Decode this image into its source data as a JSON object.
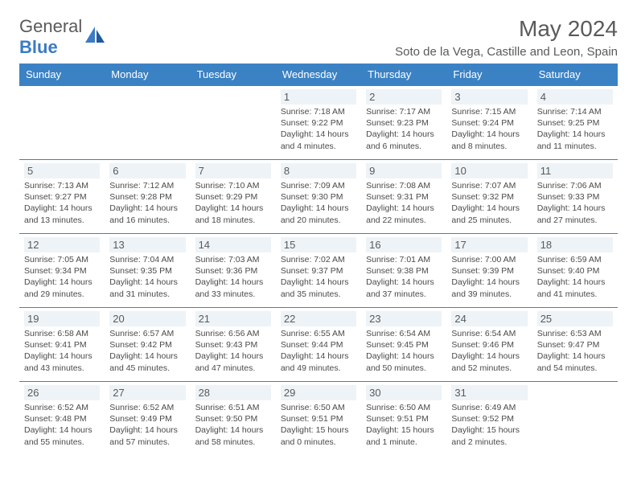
{
  "logo": {
    "text_gray": "General",
    "text_blue": "Blue"
  },
  "title": "May 2024",
  "location": "Soto de la Vega, Castille and Leon, Spain",
  "colors": {
    "header_bg": "#3b82c4",
    "daynum_bg": "#eef3f7",
    "text_gray": "#5a5a5a",
    "detail_text": "#4a4a4a",
    "logo_blue": "#3b7bc4"
  },
  "dayNames": [
    "Sunday",
    "Monday",
    "Tuesday",
    "Wednesday",
    "Thursday",
    "Friday",
    "Saturday"
  ],
  "weeks": [
    [
      null,
      null,
      null,
      {
        "n": "1",
        "sr": "7:18 AM",
        "ss": "9:22 PM",
        "dl": "14 hours and 4 minutes."
      },
      {
        "n": "2",
        "sr": "7:17 AM",
        "ss": "9:23 PM",
        "dl": "14 hours and 6 minutes."
      },
      {
        "n": "3",
        "sr": "7:15 AM",
        "ss": "9:24 PM",
        "dl": "14 hours and 8 minutes."
      },
      {
        "n": "4",
        "sr": "7:14 AM",
        "ss": "9:25 PM",
        "dl": "14 hours and 11 minutes."
      }
    ],
    [
      {
        "n": "5",
        "sr": "7:13 AM",
        "ss": "9:27 PM",
        "dl": "14 hours and 13 minutes."
      },
      {
        "n": "6",
        "sr": "7:12 AM",
        "ss": "9:28 PM",
        "dl": "14 hours and 16 minutes."
      },
      {
        "n": "7",
        "sr": "7:10 AM",
        "ss": "9:29 PM",
        "dl": "14 hours and 18 minutes."
      },
      {
        "n": "8",
        "sr": "7:09 AM",
        "ss": "9:30 PM",
        "dl": "14 hours and 20 minutes."
      },
      {
        "n": "9",
        "sr": "7:08 AM",
        "ss": "9:31 PM",
        "dl": "14 hours and 22 minutes."
      },
      {
        "n": "10",
        "sr": "7:07 AM",
        "ss": "9:32 PM",
        "dl": "14 hours and 25 minutes."
      },
      {
        "n": "11",
        "sr": "7:06 AM",
        "ss": "9:33 PM",
        "dl": "14 hours and 27 minutes."
      }
    ],
    [
      {
        "n": "12",
        "sr": "7:05 AM",
        "ss": "9:34 PM",
        "dl": "14 hours and 29 minutes."
      },
      {
        "n": "13",
        "sr": "7:04 AM",
        "ss": "9:35 PM",
        "dl": "14 hours and 31 minutes."
      },
      {
        "n": "14",
        "sr": "7:03 AM",
        "ss": "9:36 PM",
        "dl": "14 hours and 33 minutes."
      },
      {
        "n": "15",
        "sr": "7:02 AM",
        "ss": "9:37 PM",
        "dl": "14 hours and 35 minutes."
      },
      {
        "n": "16",
        "sr": "7:01 AM",
        "ss": "9:38 PM",
        "dl": "14 hours and 37 minutes."
      },
      {
        "n": "17",
        "sr": "7:00 AM",
        "ss": "9:39 PM",
        "dl": "14 hours and 39 minutes."
      },
      {
        "n": "18",
        "sr": "6:59 AM",
        "ss": "9:40 PM",
        "dl": "14 hours and 41 minutes."
      }
    ],
    [
      {
        "n": "19",
        "sr": "6:58 AM",
        "ss": "9:41 PM",
        "dl": "14 hours and 43 minutes."
      },
      {
        "n": "20",
        "sr": "6:57 AM",
        "ss": "9:42 PM",
        "dl": "14 hours and 45 minutes."
      },
      {
        "n": "21",
        "sr": "6:56 AM",
        "ss": "9:43 PM",
        "dl": "14 hours and 47 minutes."
      },
      {
        "n": "22",
        "sr": "6:55 AM",
        "ss": "9:44 PM",
        "dl": "14 hours and 49 minutes."
      },
      {
        "n": "23",
        "sr": "6:54 AM",
        "ss": "9:45 PM",
        "dl": "14 hours and 50 minutes."
      },
      {
        "n": "24",
        "sr": "6:54 AM",
        "ss": "9:46 PM",
        "dl": "14 hours and 52 minutes."
      },
      {
        "n": "25",
        "sr": "6:53 AM",
        "ss": "9:47 PM",
        "dl": "14 hours and 54 minutes."
      }
    ],
    [
      {
        "n": "26",
        "sr": "6:52 AM",
        "ss": "9:48 PM",
        "dl": "14 hours and 55 minutes."
      },
      {
        "n": "27",
        "sr": "6:52 AM",
        "ss": "9:49 PM",
        "dl": "14 hours and 57 minutes."
      },
      {
        "n": "28",
        "sr": "6:51 AM",
        "ss": "9:50 PM",
        "dl": "14 hours and 58 minutes."
      },
      {
        "n": "29",
        "sr": "6:50 AM",
        "ss": "9:51 PM",
        "dl": "15 hours and 0 minutes."
      },
      {
        "n": "30",
        "sr": "6:50 AM",
        "ss": "9:51 PM",
        "dl": "15 hours and 1 minute."
      },
      {
        "n": "31",
        "sr": "6:49 AM",
        "ss": "9:52 PM",
        "dl": "15 hours and 2 minutes."
      },
      null
    ]
  ],
  "labels": {
    "sunrise": "Sunrise:",
    "sunset": "Sunset:",
    "daylight": "Daylight:"
  }
}
